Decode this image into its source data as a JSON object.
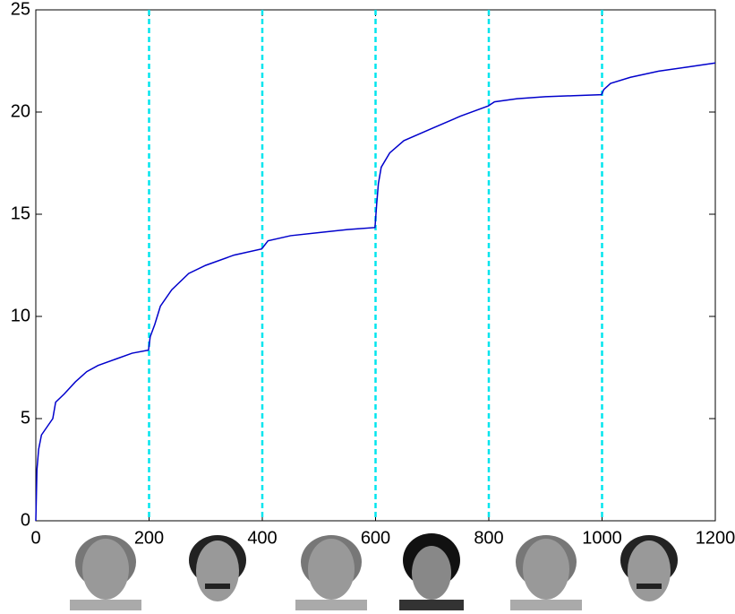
{
  "chart_data": {
    "type": "line",
    "x": [
      0,
      2,
      5,
      10,
      20,
      30,
      35,
      50,
      70,
      90,
      110,
      140,
      170,
      199,
      202,
      210,
      220,
      240,
      270,
      300,
      350,
      399,
      410,
      450,
      500,
      550,
      599,
      602,
      605,
      610,
      625,
      650,
      700,
      750,
      799,
      810,
      850,
      900,
      950,
      999,
      1003,
      1015,
      1050,
      1100,
      1150,
      1200
    ],
    "series": [
      {
        "color": "#0000cc",
        "values": [
          0,
          2.5,
          3.5,
          4.2,
          4.6,
          5.0,
          5.8,
          6.2,
          6.8,
          7.3,
          7.6,
          7.9,
          8.2,
          8.35,
          9.0,
          9.6,
          10.5,
          11.3,
          12.1,
          12.5,
          13.0,
          13.3,
          13.7,
          13.95,
          14.1,
          14.25,
          14.35,
          15.5,
          16.5,
          17.3,
          18.0,
          18.6,
          19.2,
          19.8,
          20.3,
          20.5,
          20.65,
          20.75,
          20.8,
          20.85,
          21.1,
          21.4,
          21.7,
          22.0,
          22.2,
          22.4
        ]
      }
    ],
    "vlines": [
      200,
      400,
      600,
      800,
      1000
    ],
    "vline_color": "#00e5ee",
    "xlim": [
      0,
      1200
    ],
    "xticks": [
      0,
      200,
      400,
      600,
      800,
      1000,
      1200
    ],
    "ylim": [
      0,
      25
    ],
    "yticks": [
      0,
      5,
      10,
      15,
      20,
      25
    ],
    "grid": false
  }
}
